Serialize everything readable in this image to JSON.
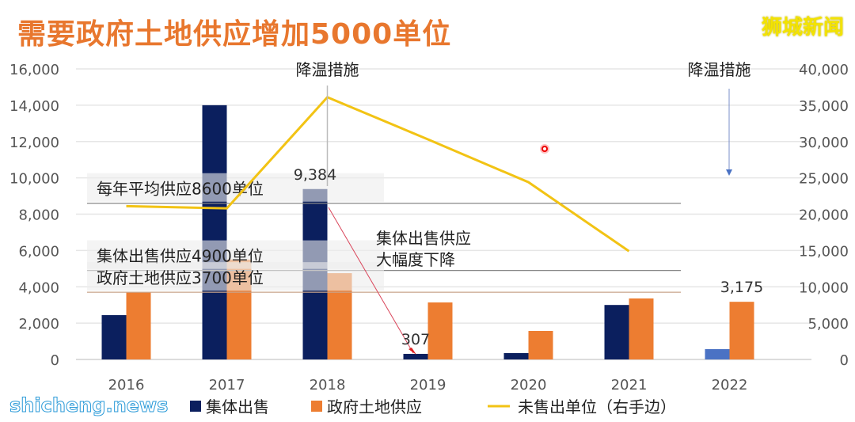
{
  "title": "需要政府土地供应增加5000单位",
  "brand": "狮城新闻",
  "watermark": "shicheng.news",
  "chart_data": {
    "type": "bar",
    "categories": [
      "2016",
      "2017",
      "2018",
      "2019",
      "2020",
      "2021",
      "2022"
    ],
    "ylim": [
      0,
      16000
    ],
    "y2lim": [
      0,
      40000
    ],
    "yticks": [
      "0",
      "2,000",
      "4,000",
      "6,000",
      "8,000",
      "10,000",
      "12,000",
      "14,000",
      "16,000"
    ],
    "y2ticks": [
      "0",
      "5,000",
      "10,000",
      "15,000",
      "20,000",
      "25,000",
      "30,000",
      "35,000",
      "40,000"
    ],
    "grid": true,
    "legend_position": "bottom",
    "series": [
      {
        "name": "集体出售",
        "kind": "bar",
        "axis": "left",
        "color": "#0b1f5e",
        "values": [
          2440,
          14000,
          9384,
          307,
          350,
          3000,
          570
        ],
        "highlight_last_color": "#4a72c4"
      },
      {
        "name": "政府土地供应",
        "kind": "bar",
        "axis": "left",
        "color": "#ed7d31",
        "values": [
          3700,
          5500,
          4750,
          3140,
          1570,
          3360,
          3175
        ]
      },
      {
        "name": "未售出单位（右手边）",
        "kind": "line",
        "axis": "right",
        "color": "#f2c314",
        "values": [
          21100,
          20800,
          36100,
          30300,
          24400,
          14900,
          null
        ]
      }
    ],
    "data_labels": [
      {
        "category": "2018",
        "series": "集体出售",
        "text": "9,384"
      },
      {
        "category": "2019",
        "series": "集体出售",
        "text": "307"
      },
      {
        "category": "2022",
        "series": "政府土地供应",
        "text": "3,175"
      }
    ],
    "reference_lines": [
      {
        "value": 8600,
        "text": "每年平均供应8600单位"
      },
      {
        "value": 4900,
        "text": "集体出售供应4900单位"
      },
      {
        "value": 3700,
        "text": "政府土地供应3700单位"
      }
    ],
    "annotations": [
      {
        "text": "降温措施",
        "category": "2018"
      },
      {
        "text": "降温措施",
        "category": "2022"
      },
      {
        "text": "集体出售供应",
        "text2": "大幅度下降"
      }
    ]
  }
}
